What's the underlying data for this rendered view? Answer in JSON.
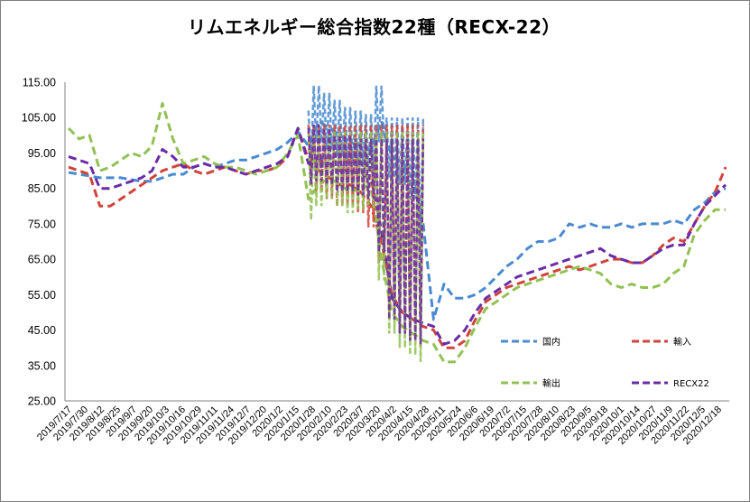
{
  "chart_data": {
    "type": "line",
    "title": "リムエネルギー総合指数22種（RECX-22）",
    "xlabel": "",
    "ylabel": "",
    "ylim": [
      25,
      115
    ],
    "y_ticks": [
      "115.00",
      "105.00",
      "95.00",
      "85.00",
      "75.00",
      "65.00",
      "55.00",
      "45.00",
      "35.00",
      "25.00"
    ],
    "x_ticks": [
      "2019/7/17",
      "2019/7/30",
      "2019/8/12",
      "2019/8/25",
      "2019/9/7",
      "2019/9/20",
      "2019/10/3",
      "2019/10/16",
      "2019/10/29",
      "2019/11/11",
      "2019/11/24",
      "2019/12/7",
      "2019/12/20",
      "2020/1/2",
      "2020/1/15",
      "2020/1/28",
      "2020/2/10",
      "2020/2/23",
      "2020/3/7",
      "2020/3/20",
      "2020/4/2",
      "2020/4/15",
      "2020/4/28",
      "2020/5/11",
      "2020/5/24",
      "2020/6/6",
      "2020/6/19",
      "2020/7/2",
      "2020/7/15",
      "2020/7/28",
      "2020/8/10",
      "2020/8/23",
      "2020/9/5",
      "2020/9/18",
      "2020/10/1",
      "2020/10/14",
      "2020/10/27",
      "2020/11/9",
      "2020/11/22",
      "2020/12/5",
      "2020/12/18"
    ],
    "grid": false,
    "legend_position": "inside-bottom-right",
    "series": [
      {
        "name": "国内",
        "color": "#4a8bd0",
        "dash": "dashed",
        "values": [
          89.5,
          89,
          88.5,
          88,
          88,
          88,
          87.5,
          87,
          87,
          88,
          89,
          89,
          91,
          92,
          91,
          92,
          93,
          93,
          94,
          95,
          96,
          98,
          101,
          97,
          104,
          102,
          100,
          98,
          97,
          96,
          104,
          94,
          92,
          88,
          75,
          48,
          58,
          54,
          54,
          55,
          57,
          60,
          63,
          65,
          68,
          70,
          70,
          71,
          75,
          74,
          75,
          74,
          74,
          75,
          74,
          75,
          75,
          75,
          76,
          75,
          79,
          81,
          84,
          85
        ]
      },
      {
        "name": "輸入",
        "color": "#d0443b",
        "dash": "dashed",
        "values": [
          91,
          90,
          89,
          80,
          80,
          82,
          84,
          86,
          88,
          90,
          91,
          92,
          90,
          89,
          90,
          91,
          90,
          89,
          90,
          90,
          91,
          94,
          102,
          93,
          90,
          88,
          86,
          86,
          84,
          80,
          70,
          55,
          50,
          48,
          46,
          45,
          40,
          40,
          42,
          48,
          53,
          55,
          57,
          58,
          59,
          60,
          61,
          62,
          63,
          62,
          63,
          64,
          65,
          65,
          64,
          64,
          66,
          69,
          71,
          70,
          75,
          80,
          84,
          91
        ]
      },
      {
        "name": "輸出",
        "color": "#92c153",
        "dash": "dashed",
        "values": [
          102,
          99,
          100,
          90,
          91,
          93,
          95,
          94,
          97,
          109,
          99,
          92,
          93,
          94,
          92,
          91,
          91,
          90,
          89,
          90,
          91,
          95,
          100,
          82,
          86,
          88,
          86,
          84,
          85,
          86,
          65,
          50,
          46,
          44,
          42,
          41,
          36,
          36,
          40,
          46,
          51,
          53,
          55,
          57,
          58,
          59,
          60,
          61,
          62,
          63,
          62,
          61,
          58,
          57,
          58,
          57,
          57,
          58,
          61,
          63,
          72,
          76,
          79,
          79
        ]
      },
      {
        "name": "RECX22",
        "color": "#6b2ca8",
        "dash": "dashed",
        "values": [
          94,
          93,
          92,
          85,
          85,
          86,
          87,
          88,
          90,
          96,
          94,
          91,
          91,
          92,
          91,
          91,
          90,
          89,
          90,
          91,
          92,
          94,
          102,
          92,
          93,
          92,
          90,
          90,
          89,
          88,
          73,
          54,
          50,
          48,
          47,
          46,
          41,
          42,
          45,
          50,
          54,
          56,
          58,
          60,
          61,
          62,
          63,
          64,
          65,
          66,
          67,
          68,
          66,
          65,
          64,
          64,
          66,
          68,
          69,
          69,
          75,
          80,
          83,
          86
        ]
      }
    ]
  }
}
